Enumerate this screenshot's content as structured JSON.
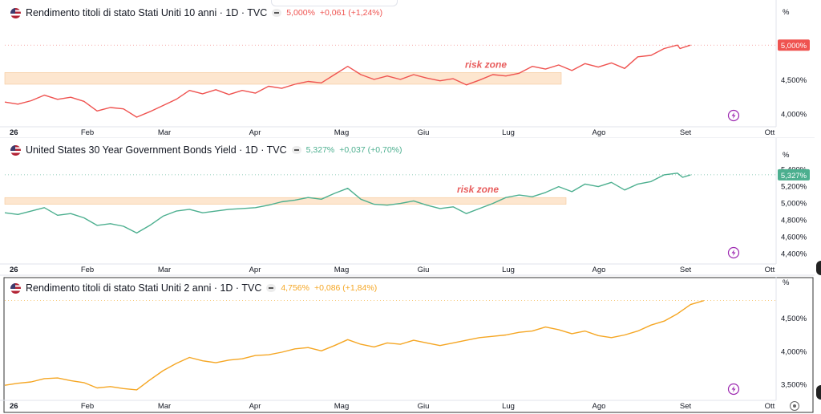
{
  "xaxis": {
    "labels": [
      "26",
      "Feb",
      "Mar",
      "Apr",
      "Mag",
      "Giu",
      "Lug",
      "Ago",
      "Set",
      "Ott"
    ]
  },
  "chart_data": [
    {
      "type": "line",
      "title": "Rendimento titoli di stato Stati Uniti 10 anni · 1D · TVC",
      "header_value": "5,000%",
      "header_change": "+0,061 (+1,24%)",
      "color": "#ef5350",
      "unit_label": "%",
      "last_label": "5,000%",
      "yticks": [
        "4,500%",
        "4,000%"
      ],
      "ylim": [
        3.88,
        5.4
      ],
      "zone_label": "risk zone",
      "zone": {
        "from": 4.43,
        "to": 4.6
      },
      "points": [
        [
          0,
          4.17
        ],
        [
          0.05,
          4.14
        ],
        [
          0.1,
          4.19
        ],
        [
          0.15,
          4.27
        ],
        [
          0.2,
          4.21
        ],
        [
          0.25,
          4.24
        ],
        [
          0.3,
          4.18
        ],
        [
          0.35,
          4.04
        ],
        [
          0.4,
          4.09
        ],
        [
          0.45,
          4.07
        ],
        [
          0.5,
          3.95
        ],
        [
          0.55,
          4.03
        ],
        [
          0.6,
          4.12
        ],
        [
          0.65,
          4.21
        ],
        [
          0.7,
          4.34
        ],
        [
          0.75,
          4.29
        ],
        [
          0.8,
          4.35
        ],
        [
          0.85,
          4.28
        ],
        [
          0.9,
          4.34
        ],
        [
          0.95,
          4.3
        ],
        [
          1.0,
          4.4
        ],
        [
          1.05,
          4.37
        ],
        [
          1.1,
          4.43
        ],
        [
          1.15,
          4.47
        ],
        [
          1.2,
          4.45
        ],
        [
          1.25,
          4.57
        ],
        [
          1.3,
          4.69
        ],
        [
          1.35,
          4.57
        ],
        [
          1.4,
          4.5
        ],
        [
          1.45,
          4.55
        ],
        [
          1.5,
          4.5
        ],
        [
          1.55,
          4.57
        ],
        [
          1.6,
          4.52
        ],
        [
          1.65,
          4.48
        ],
        [
          1.7,
          4.51
        ],
        [
          1.75,
          4.42
        ],
        [
          1.8,
          4.49
        ],
        [
          1.85,
          4.57
        ],
        [
          1.9,
          4.55
        ],
        [
          1.95,
          4.59
        ],
        [
          2.0,
          4.69
        ],
        [
          2.05,
          4.65
        ],
        [
          2.1,
          4.71
        ],
        [
          2.15,
          4.63
        ],
        [
          2.2,
          4.73
        ],
        [
          2.25,
          4.68
        ],
        [
          2.3,
          4.74
        ],
        [
          2.35,
          4.66
        ],
        [
          2.4,
          4.83
        ],
        [
          2.45,
          4.85
        ],
        [
          2.5,
          4.95
        ],
        [
          2.55,
          5.0
        ],
        [
          2.56,
          4.95
        ],
        [
          2.6,
          5.0
        ]
      ]
    },
    {
      "type": "line",
      "title": "United States 30 Year Government Bonds Yield · 1D · TVC",
      "header_value": "5,327%",
      "header_change": "+0,037 (+0,70%)",
      "color": "#4caf8f",
      "unit_label": "%",
      "last_label": "5,327%",
      "yticks": [
        "5,400%",
        "5,200%",
        "5,000%",
        "4,800%",
        "4,600%",
        "4,400%"
      ],
      "ylim": [
        4.32,
        5.5
      ],
      "zone_label": "risk zone",
      "zone": {
        "from": 4.98,
        "to": 5.06
      },
      "points": [
        [
          0,
          4.88
        ],
        [
          0.05,
          4.86
        ],
        [
          0.1,
          4.9
        ],
        [
          0.15,
          4.94
        ],
        [
          0.2,
          4.85
        ],
        [
          0.25,
          4.87
        ],
        [
          0.3,
          4.82
        ],
        [
          0.35,
          4.73
        ],
        [
          0.4,
          4.75
        ],
        [
          0.45,
          4.72
        ],
        [
          0.5,
          4.64
        ],
        [
          0.55,
          4.73
        ],
        [
          0.6,
          4.84
        ],
        [
          0.65,
          4.9
        ],
        [
          0.7,
          4.92
        ],
        [
          0.75,
          4.88
        ],
        [
          0.8,
          4.9
        ],
        [
          0.85,
          4.92
        ],
        [
          0.9,
          4.93
        ],
        [
          0.95,
          4.94
        ],
        [
          1.0,
          4.97
        ],
        [
          1.05,
          5.01
        ],
        [
          1.1,
          5.03
        ],
        [
          1.15,
          5.06
        ],
        [
          1.2,
          5.04
        ],
        [
          1.25,
          5.11
        ],
        [
          1.3,
          5.17
        ],
        [
          1.35,
          5.04
        ],
        [
          1.4,
          4.98
        ],
        [
          1.45,
          4.97
        ],
        [
          1.5,
          4.99
        ],
        [
          1.55,
          5.02
        ],
        [
          1.6,
          4.97
        ],
        [
          1.65,
          4.93
        ],
        [
          1.7,
          4.95
        ],
        [
          1.75,
          4.87
        ],
        [
          1.8,
          4.93
        ],
        [
          1.85,
          4.99
        ],
        [
          1.9,
          5.06
        ],
        [
          1.95,
          5.09
        ],
        [
          2.0,
          5.07
        ],
        [
          2.05,
          5.12
        ],
        [
          2.1,
          5.19
        ],
        [
          2.15,
          5.13
        ],
        [
          2.2,
          5.22
        ],
        [
          2.25,
          5.19
        ],
        [
          2.3,
          5.24
        ],
        [
          2.35,
          5.15
        ],
        [
          2.4,
          5.22
        ],
        [
          2.45,
          5.25
        ],
        [
          2.5,
          5.33
        ],
        [
          2.55,
          5.35
        ],
        [
          2.57,
          5.3
        ],
        [
          2.6,
          5.33
        ]
      ]
    },
    {
      "type": "line",
      "title": "Rendimento titoli di stato Stati Uniti 2 anni · 1D · TVC",
      "header_value": "4,756%",
      "header_change": "+0,086 (+1,84%)",
      "color": "#f5a623",
      "unit_label": "%",
      "last_label": "",
      "yticks": [
        "4,500%",
        "4,000%",
        "3,500%"
      ],
      "ylim": [
        3.3,
        4.95
      ],
      "zone_label": "",
      "zone": null,
      "points": [
        [
          0,
          3.48
        ],
        [
          0.05,
          3.51
        ],
        [
          0.1,
          3.53
        ],
        [
          0.15,
          3.58
        ],
        [
          0.2,
          3.59
        ],
        [
          0.25,
          3.55
        ],
        [
          0.3,
          3.52
        ],
        [
          0.35,
          3.44
        ],
        [
          0.4,
          3.46
        ],
        [
          0.45,
          3.43
        ],
        [
          0.5,
          3.41
        ],
        [
          0.55,
          3.56
        ],
        [
          0.6,
          3.7
        ],
        [
          0.65,
          3.81
        ],
        [
          0.7,
          3.9
        ],
        [
          0.75,
          3.85
        ],
        [
          0.8,
          3.82
        ],
        [
          0.85,
          3.86
        ],
        [
          0.9,
          3.88
        ],
        [
          0.95,
          3.93
        ],
        [
          1.0,
          3.94
        ],
        [
          1.05,
          3.98
        ],
        [
          1.1,
          4.03
        ],
        [
          1.15,
          4.05
        ],
        [
          1.2,
          4.0
        ],
        [
          1.25,
          4.08
        ],
        [
          1.3,
          4.17
        ],
        [
          1.35,
          4.1
        ],
        [
          1.4,
          4.06
        ],
        [
          1.45,
          4.12
        ],
        [
          1.5,
          4.1
        ],
        [
          1.55,
          4.16
        ],
        [
          1.6,
          4.12
        ],
        [
          1.65,
          4.08
        ],
        [
          1.7,
          4.12
        ],
        [
          1.75,
          4.16
        ],
        [
          1.8,
          4.2
        ],
        [
          1.85,
          4.22
        ],
        [
          1.9,
          4.24
        ],
        [
          1.95,
          4.28
        ],
        [
          2.0,
          4.3
        ],
        [
          2.05,
          4.36
        ],
        [
          2.1,
          4.32
        ],
        [
          2.15,
          4.26
        ],
        [
          2.2,
          4.3
        ],
        [
          2.25,
          4.23
        ],
        [
          2.3,
          4.2
        ],
        [
          2.35,
          4.24
        ],
        [
          2.4,
          4.3
        ],
        [
          2.45,
          4.39
        ],
        [
          2.5,
          4.45
        ],
        [
          2.55,
          4.56
        ],
        [
          2.6,
          4.7
        ],
        [
          2.65,
          4.76
        ]
      ]
    }
  ]
}
